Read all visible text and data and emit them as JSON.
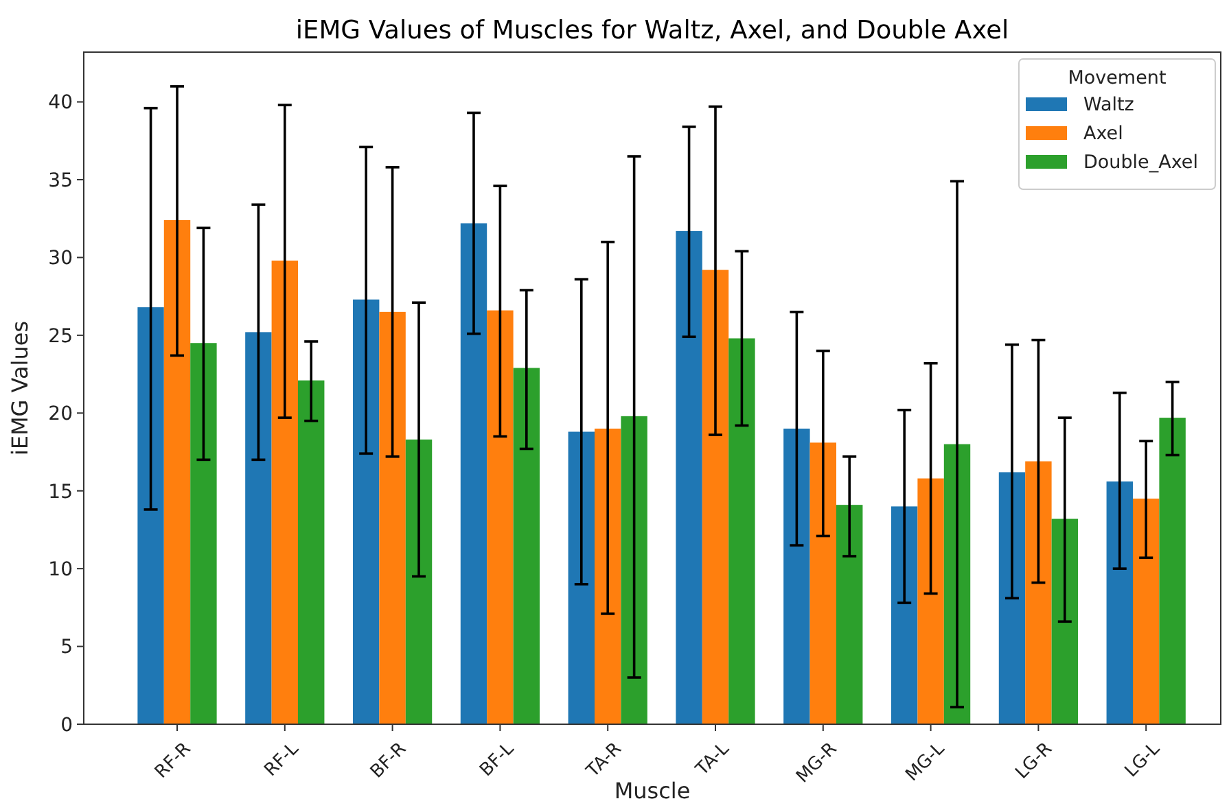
{
  "chart_data": {
    "type": "bar",
    "title": "iEMG Values of Muscles for Waltz, Axel, and Double Axel",
    "xlabel": "Muscle",
    "ylabel": "iEMG Values",
    "legend_title": "Movement",
    "legend": "top right",
    "categories": [
      "RF-R",
      "RF-L",
      "BF-R",
      "BF-L",
      "TA-R",
      "TA-L",
      "MG-R",
      "MG-L",
      "LG-R",
      "LG-L"
    ],
    "ylim": [
      0,
      43.2
    ],
    "yticks": [
      0,
      5,
      10,
      15,
      20,
      25,
      30,
      35,
      40
    ],
    "series": [
      {
        "name": "Waltz",
        "color": "#1f77b4",
        "values": [
          26.8,
          25.2,
          27.3,
          32.2,
          18.8,
          31.7,
          19.0,
          14.0,
          16.2,
          15.6
        ],
        "errors": [
          [
            13.8,
            39.6
          ],
          [
            17.0,
            33.4
          ],
          [
            17.4,
            37.1
          ],
          [
            25.1,
            39.3
          ],
          [
            9.0,
            28.6
          ],
          [
            24.9,
            38.4
          ],
          [
            11.5,
            26.5
          ],
          [
            7.8,
            20.2
          ],
          [
            8.1,
            24.4
          ],
          [
            10.0,
            21.3
          ]
        ]
      },
      {
        "name": "Axel",
        "color": "#ff7f0e",
        "values": [
          32.4,
          29.8,
          26.5,
          26.6,
          19.0,
          29.2,
          18.1,
          15.8,
          16.9,
          14.5
        ],
        "errors": [
          [
            23.7,
            41.0
          ],
          [
            19.7,
            39.8
          ],
          [
            17.2,
            35.8
          ],
          [
            18.5,
            34.6
          ],
          [
            7.1,
            31.0
          ],
          [
            18.6,
            39.7
          ],
          [
            12.1,
            24.0
          ],
          [
            8.4,
            23.2
          ],
          [
            9.1,
            24.7
          ],
          [
            10.7,
            18.2
          ]
        ]
      },
      {
        "name": "Double_Axel",
        "color": "#2ca02c",
        "values": [
          24.5,
          22.1,
          18.3,
          22.9,
          19.8,
          24.8,
          14.1,
          18.0,
          13.2,
          19.7
        ],
        "errors": [
          [
            17.0,
            31.9
          ],
          [
            19.5,
            24.6
          ],
          [
            9.5,
            27.1
          ],
          [
            17.7,
            27.9
          ],
          [
            3.0,
            36.5
          ],
          [
            19.2,
            30.4
          ],
          [
            10.8,
            17.2
          ],
          [
            1.1,
            34.9
          ],
          [
            6.6,
            19.7
          ],
          [
            17.3,
            22.0
          ]
        ]
      }
    ]
  }
}
